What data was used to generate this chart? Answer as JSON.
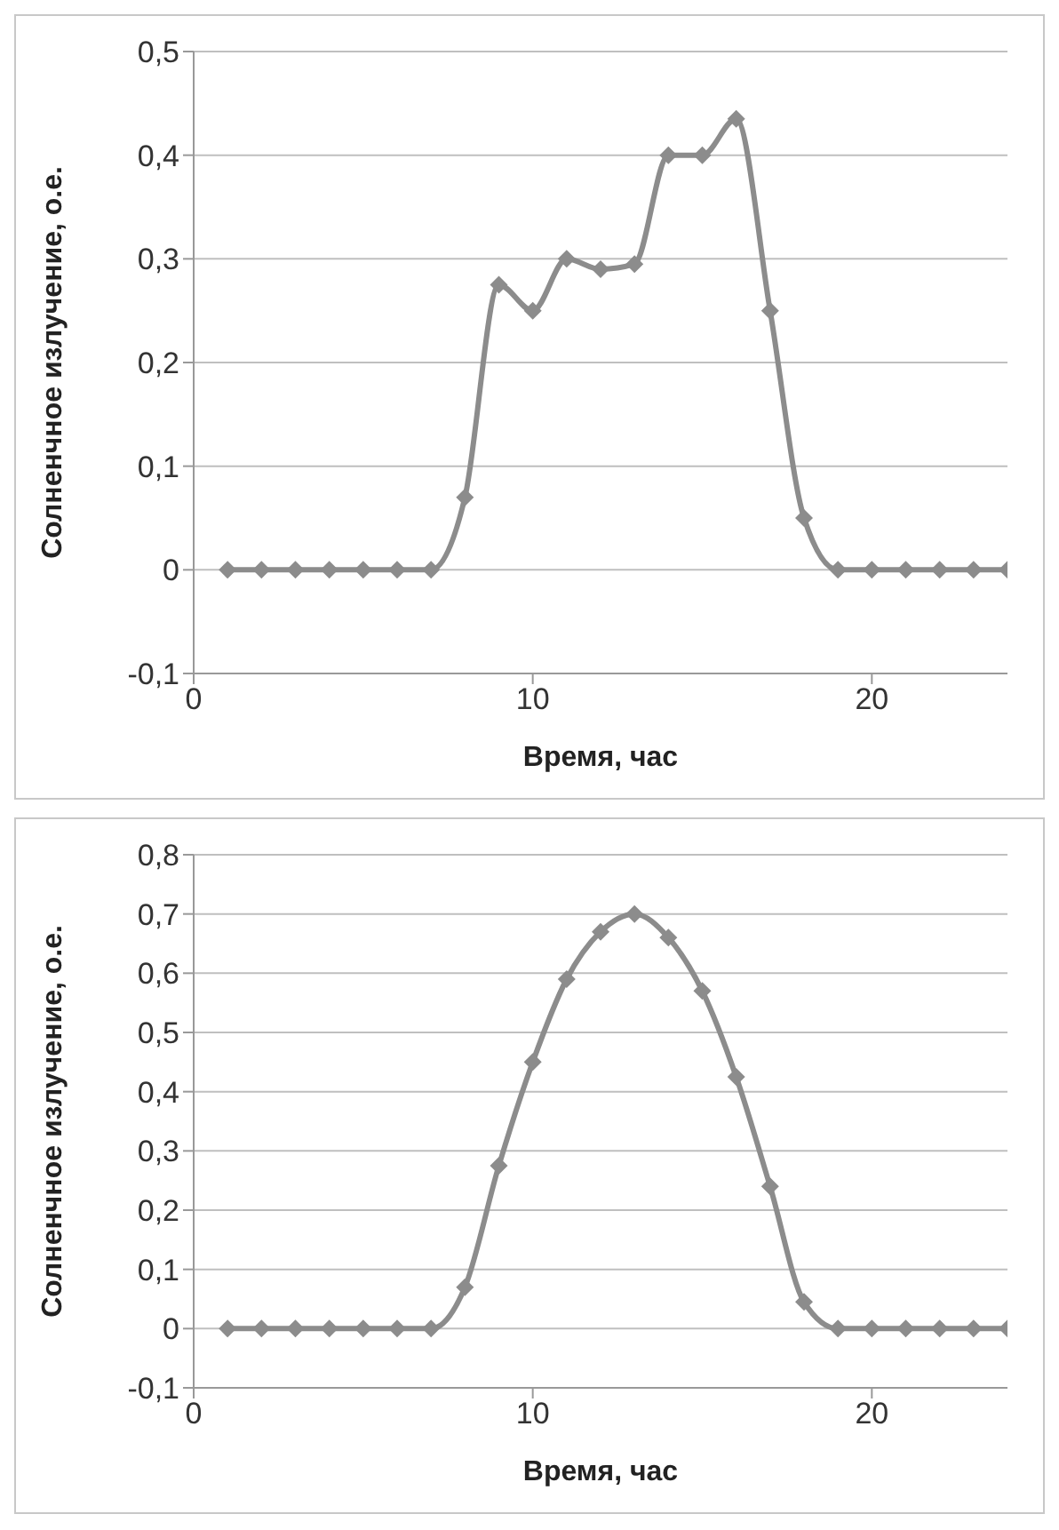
{
  "chart_data": [
    {
      "type": "line",
      "xlabel": "Время, час",
      "ylabel": "Солненчное излучение, о.е.",
      "x": [
        1,
        2,
        3,
        4,
        5,
        6,
        7,
        8,
        9,
        10,
        11,
        12,
        13,
        14,
        15,
        16,
        17,
        18,
        19,
        20,
        21,
        22,
        23,
        24
      ],
      "series": [
        {
          "color": "#8c8c8c",
          "values": [
            0,
            0,
            0,
            0,
            0,
            0,
            0,
            0.07,
            0.275,
            0.25,
            0.3,
            0.29,
            0.295,
            0.4,
            0.4,
            0.435,
            0.25,
            0.05,
            0,
            0,
            0,
            0,
            0,
            0
          ]
        }
      ],
      "xlim": [
        0,
        24
      ],
      "xticks": [
        0,
        10,
        20
      ],
      "ylim": [
        -0.1,
        0.5
      ],
      "yticks": [
        {
          "value": -0.1,
          "label": "-0,1"
        },
        0,
        {
          "value": 0.1,
          "label": "0,1"
        },
        {
          "value": 0.2,
          "label": "0,2"
        },
        {
          "value": 0.3,
          "label": "0,3"
        },
        {
          "value": 0.4,
          "label": "0,4"
        },
        {
          "value": 0.5,
          "label": "0,5"
        }
      ],
      "grid": "y",
      "marker": "diamond",
      "line_style": "solid"
    },
    {
      "type": "line",
      "xlabel": "Время, час",
      "ylabel": "Солненчное излучение, о.е.",
      "x": [
        1,
        2,
        3,
        4,
        5,
        6,
        7,
        8,
        9,
        10,
        11,
        12,
        13,
        14,
        15,
        16,
        17,
        18,
        19,
        20,
        21,
        22,
        23,
        24
      ],
      "series": [
        {
          "color": "#8c8c8c",
          "values": [
            0,
            0,
            0,
            0,
            0,
            0,
            0,
            0.07,
            0.275,
            0.45,
            0.59,
            0.67,
            0.7,
            0.66,
            0.57,
            0.425,
            0.24,
            0.045,
            0,
            0,
            0,
            0,
            0,
            0
          ]
        }
      ],
      "xlim": [
        0,
        24
      ],
      "xticks": [
        0,
        10,
        20
      ],
      "ylim": [
        -0.1,
        0.8
      ],
      "yticks": [
        {
          "value": -0.1,
          "label": "-0,1"
        },
        0,
        {
          "value": 0.1,
          "label": "0,1"
        },
        {
          "value": 0.2,
          "label": "0,2"
        },
        {
          "value": 0.3,
          "label": "0,3"
        },
        {
          "value": 0.4,
          "label": "0,4"
        },
        {
          "value": 0.5,
          "label": "0,5"
        },
        {
          "value": 0.6,
          "label": "0,6"
        },
        {
          "value": 0.7,
          "label": "0,7"
        },
        {
          "value": 0.8,
          "label": "0,8"
        }
      ],
      "grid": "y",
      "marker": "diamond",
      "line_style": "solid"
    }
  ]
}
